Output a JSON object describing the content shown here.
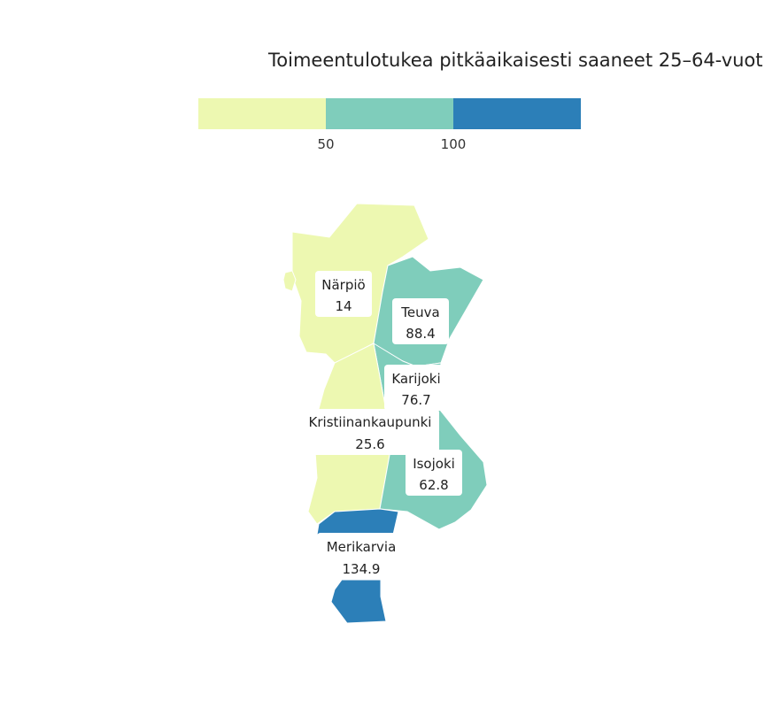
{
  "title": "Toimeentulotukea pitkäaikaisesti saaneet 25–64-vuot",
  "legend": {
    "bins": [
      {
        "min": null,
        "max": 50,
        "color": "#edf8b1"
      },
      {
        "min": 50,
        "max": 100,
        "color": "#7fcdbb"
      },
      {
        "min": 100,
        "max": null,
        "color": "#2c7fb8"
      }
    ],
    "ticks": [
      "50",
      "100"
    ]
  },
  "regions": [
    {
      "id": "narpio",
      "name": "Närpiö",
      "value": "14",
      "color": "#edf8b1"
    },
    {
      "id": "teuva",
      "name": "Teuva",
      "value": "88.4",
      "color": "#7fcdbb"
    },
    {
      "id": "karijoki",
      "name": "Karijoki",
      "value": "76.7",
      "color": "#7fcdbb"
    },
    {
      "id": "kristiinankaupunki",
      "name": "Kristiinankaupunki",
      "value": "25.6",
      "color": "#edf8b1"
    },
    {
      "id": "isojoki",
      "name": "Isojoki",
      "value": "62.8",
      "color": "#7fcdbb"
    },
    {
      "id": "merikarvia",
      "name": "Merikarvia",
      "value": "134.9",
      "color": "#2c7fb8"
    }
  ]
}
